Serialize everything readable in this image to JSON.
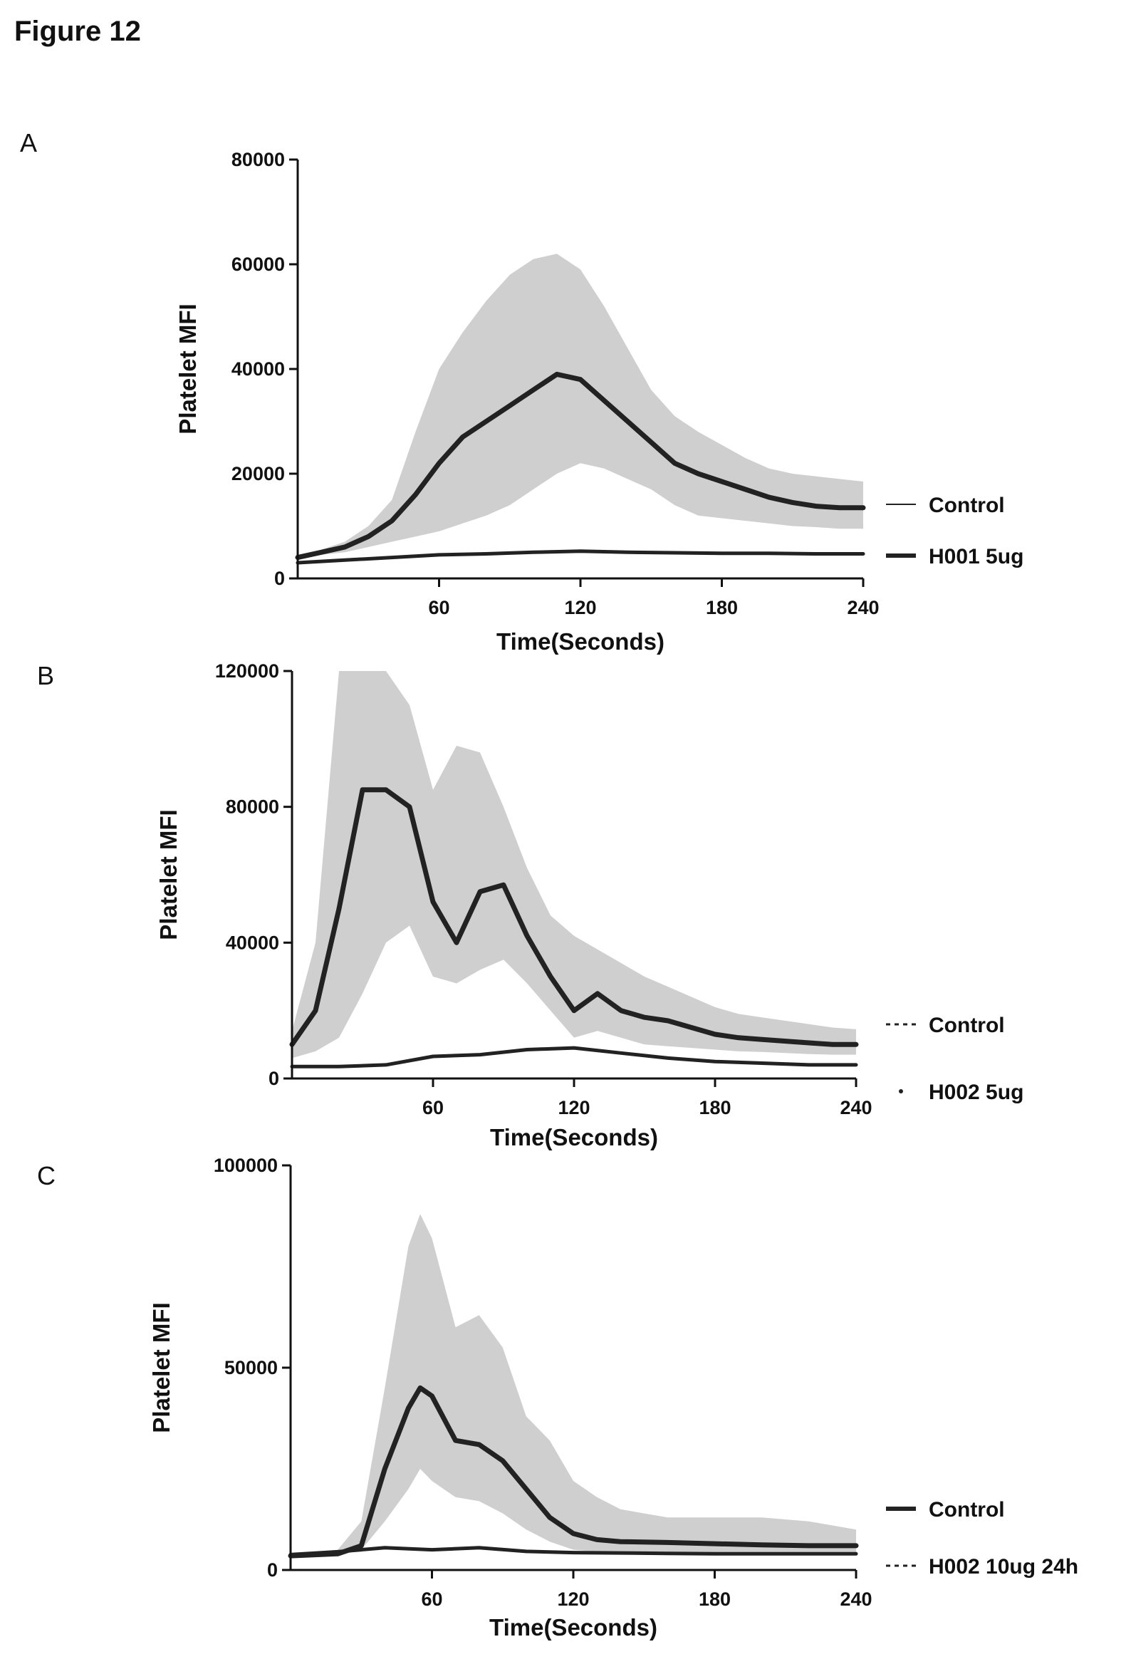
{
  "figure_title": "Figure 12",
  "colors": {
    "band": "#cfcfcf",
    "line": "#222222",
    "axis": "#111111"
  },
  "chart_data": [
    {
      "panel": "A",
      "type": "line",
      "xlabel": "Time(Seconds)",
      "ylabel": "Platelet MFI",
      "xlim": [
        0,
        240
      ],
      "ylim": [
        0,
        80000
      ],
      "xticks": [
        60,
        120,
        180,
        240
      ],
      "yticks": [
        0,
        20000,
        40000,
        60000,
        80000
      ],
      "ytick_labels": [
        "0",
        "20000",
        "40000",
        "60000",
        "80000"
      ],
      "legend": [
        "Control",
        "H001 5ug"
      ],
      "series": [
        {
          "name": "Control",
          "x": [
            0,
            20,
            40,
            60,
            80,
            100,
            120,
            140,
            160,
            180,
            200,
            220,
            240
          ],
          "y": [
            3000,
            3500,
            4000,
            4500,
            4700,
            5000,
            5200,
            5000,
            4900,
            4800,
            4800,
            4700,
            4700
          ]
        },
        {
          "name": "H001 5ug",
          "x": [
            0,
            10,
            20,
            30,
            40,
            50,
            60,
            70,
            80,
            90,
            100,
            110,
            120,
            130,
            140,
            150,
            160,
            170,
            180,
            190,
            200,
            210,
            220,
            230,
            240
          ],
          "y": [
            4000,
            5000,
            6000,
            8000,
            11000,
            16000,
            22000,
            27000,
            30000,
            33000,
            36000,
            39000,
            38000,
            34000,
            30000,
            26000,
            22000,
            20000,
            18500,
            17000,
            15500,
            14500,
            13800,
            13500,
            13500
          ],
          "band_upper": [
            4200,
            5500,
            7000,
            10000,
            15000,
            28000,
            40000,
            47000,
            53000,
            58000,
            61000,
            62000,
            59000,
            52000,
            44000,
            36000,
            31000,
            28000,
            25500,
            23000,
            21000,
            20000,
            19500,
            19000,
            18500
          ],
          "band_lower": [
            3800,
            4500,
            5000,
            6000,
            7000,
            8000,
            9000,
            10500,
            12000,
            14000,
            17000,
            20000,
            22000,
            21000,
            19000,
            17000,
            14000,
            12000,
            11500,
            11000,
            10500,
            10000,
            9800,
            9500,
            9500
          ]
        }
      ]
    },
    {
      "panel": "B",
      "type": "line",
      "xlabel": "Time(Seconds)",
      "ylabel": "Platelet MFI",
      "xlim": [
        0,
        240
      ],
      "ylim": [
        0,
        120000
      ],
      "xticks": [
        60,
        120,
        180,
        240
      ],
      "yticks": [
        0,
        40000,
        80000,
        120000
      ],
      "ytick_labels": [
        "0",
        "40000",
        "80000",
        "120000"
      ],
      "legend": [
        "Control",
        "H002 5ug"
      ],
      "series": [
        {
          "name": "Control",
          "x": [
            0,
            10,
            20,
            30,
            40,
            50,
            60,
            70,
            80,
            90,
            100,
            110,
            120,
            130,
            140,
            150,
            160,
            170,
            180,
            190,
            200,
            210,
            220,
            230,
            240
          ],
          "y": [
            10000,
            20000,
            50000,
            85000,
            85000,
            80000,
            52000,
            40000,
            55000,
            57000,
            42000,
            30000,
            20000,
            25000,
            20000,
            18000,
            17000,
            15000,
            13000,
            12000,
            11500,
            11000,
            10500,
            10000,
            10000
          ],
          "band_upper": [
            14000,
            40000,
            120000,
            120000,
            120000,
            110000,
            85000,
            98000,
            96000,
            80000,
            62000,
            48000,
            42000,
            38000,
            34000,
            30000,
            27000,
            24000,
            21000,
            19000,
            18000,
            17000,
            16000,
            15000,
            14500
          ],
          "band_lower": [
            6000,
            8000,
            12000,
            25000,
            40000,
            45000,
            30000,
            28000,
            32000,
            35000,
            28000,
            20000,
            12000,
            14000,
            12000,
            10000,
            9500,
            9000,
            8500,
            8000,
            7800,
            7500,
            7200,
            7000,
            7000
          ]
        },
        {
          "name": "H002 5ug",
          "x": [
            0,
            20,
            40,
            60,
            80,
            100,
            120,
            140,
            160,
            180,
            200,
            220,
            240
          ],
          "y": [
            3500,
            3500,
            4000,
            6500,
            7000,
            8500,
            9000,
            7500,
            6000,
            5000,
            4500,
            4000,
            4000
          ]
        }
      ]
    },
    {
      "panel": "C",
      "type": "line",
      "xlabel": "Time(Seconds)",
      "ylabel": "Platelet MFI",
      "xlim": [
        0,
        240
      ],
      "ylim": [
        0,
        100000
      ],
      "xticks": [
        60,
        120,
        180,
        240
      ],
      "yticks": [
        0,
        50000,
        100000
      ],
      "ytick_labels": [
        "0",
        "50000",
        "100000"
      ],
      "legend": [
        "Control",
        "H002 10ug 24h"
      ],
      "series": [
        {
          "name": "Control",
          "x": [
            0,
            20,
            30,
            40,
            50,
            55,
            60,
            70,
            80,
            90,
            100,
            110,
            120,
            130,
            140,
            160,
            180,
            200,
            220,
            240
          ],
          "y": [
            3500,
            4000,
            6000,
            25000,
            40000,
            45000,
            43000,
            32000,
            31000,
            27000,
            20000,
            13000,
            9000,
            7500,
            7000,
            6800,
            6500,
            6200,
            6000,
            6000
          ],
          "band_upper": [
            4000,
            5000,
            12000,
            45000,
            80000,
            88000,
            82000,
            60000,
            63000,
            55000,
            38000,
            32000,
            22000,
            18000,
            15000,
            13000,
            13000,
            13000,
            12000,
            10000
          ],
          "band_lower": [
            3000,
            3500,
            5000,
            12000,
            20000,
            25000,
            22000,
            18000,
            17000,
            14000,
            10000,
            7000,
            5000,
            4500,
            4300,
            4200,
            4000,
            4000,
            3800,
            3800
          ]
        },
        {
          "name": "H002 10ug 24h",
          "x": [
            0,
            20,
            40,
            60,
            80,
            100,
            120,
            140,
            160,
            180,
            200,
            220,
            240
          ],
          "y": [
            3800,
            4500,
            5500,
            5000,
            5500,
            4600,
            4300,
            4200,
            4100,
            4000,
            4000,
            4000,
            4000
          ]
        }
      ]
    }
  ]
}
